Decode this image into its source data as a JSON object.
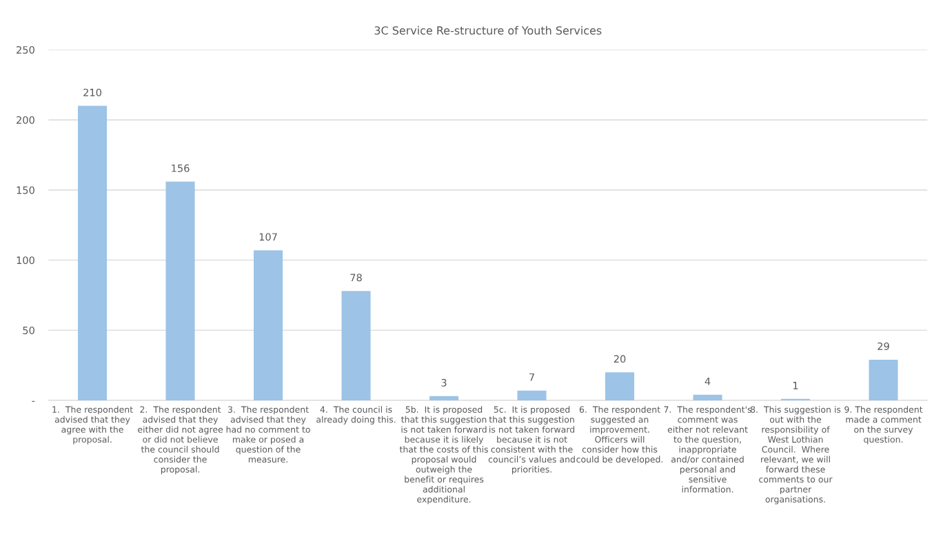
{
  "chart_data": {
    "type": "bar",
    "title": "3C Service Re-structure of Youth Services",
    "categories": [
      "1.  The respondent\nadvised that they\nagree with the\nproposal.",
      "2.  The respondent\nadvised that they\neither did not agree\nor did not believe\nthe council should\nconsider the\nproposal.",
      "3.  The respondent\nadvised that they\nhad no comment to\nmake or posed a\nquestion of the\nmeasure.",
      "4.  The council is\nalready doing this.",
      "5b.  It is proposed\nthat this suggestion\nis not taken forward\nbecause it is likely\nthat the costs of this\nproposal would\noutweigh the\nbenefit or requires\nadditional\nexpenditure.",
      "5c.  It is proposed\nthat this suggestion\nis not taken forward\nbecause it is not\nconsistent with the\ncouncil’s values and\npriorities.",
      "6.  The respondent\nsuggested an\nimprovement.\nOfficers will\nconsider how this\ncould be developed.",
      "7.  The respondent's\ncomment was\neither not relevant\nto the question,\ninappropriate\nand/or contained\npersonal and\nsensitive\ninformation.",
      "8.  This suggestion is\nout with the\nresponsibility of\nWest Lothian\nCouncil.  Where\nrelevant, we will\nforward these\ncomments to our\npartner\norganisations.",
      "9. The respondent\nmade a comment\non the survey\nquestion."
    ],
    "values": [
      210,
      156,
      107,
      78,
      3,
      7,
      20,
      4,
      1,
      29
    ],
    "color": "#9dc3e6",
    "ylim": [
      0,
      250
    ],
    "yticks": [
      {
        "value": 0,
        "label": "-"
      },
      50,
      100,
      150,
      200,
      250
    ],
    "grid": "y",
    "data_labels": true
  }
}
